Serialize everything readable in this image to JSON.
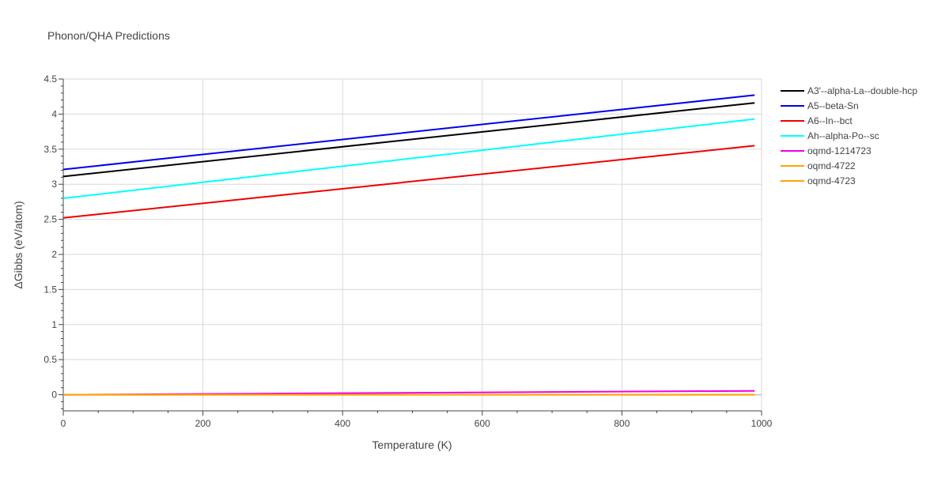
{
  "chart_data": {
    "type": "line",
    "title": "Phonon/QHA Predictions",
    "xlabel": "Temperature (K)",
    "ylabel": "ΔGibbs (eV/atom)",
    "xlim": [
      0,
      1000
    ],
    "ylim": [
      -0.23,
      4.5
    ],
    "x_ticks": [
      0,
      200,
      400,
      600,
      800,
      1000
    ],
    "x_tick_labels": [
      "0",
      "200",
      "400",
      "600",
      "800",
      "1000"
    ],
    "y_ticks": [
      0,
      0.5,
      1,
      1.5,
      2,
      2.5,
      3,
      3.5,
      4,
      4.5
    ],
    "y_tick_labels": [
      "0",
      "0.5",
      "1",
      "1.5",
      "2",
      "2.5",
      "3",
      "3.5",
      "4",
      "4.5"
    ],
    "grid": true,
    "legend_position": "right",
    "x": [
      0,
      990
    ],
    "series": [
      {
        "name": "A3'--alpha-La--double-hcp",
        "color": "#000000",
        "values": [
          3.11,
          4.16
        ]
      },
      {
        "name": "A5--beta-Sn",
        "color": "#0000ee",
        "values": [
          3.21,
          4.27
        ]
      },
      {
        "name": "A6--In--bct",
        "color": "#ee0000",
        "values": [
          2.52,
          3.55
        ]
      },
      {
        "name": "Ah--alpha-Po--sc",
        "color": "#00ffff",
        "values": [
          2.8,
          3.93
        ]
      },
      {
        "name": "oqmd-1214723",
        "color": "#ee00ee",
        "values": [
          0.0,
          0.055
        ]
      },
      {
        "name": "oqmd-4722",
        "color": "#ffa500",
        "values": [
          0.0,
          0.0
        ]
      },
      {
        "name": "oqmd-4723",
        "color": "#ffa500",
        "values": [
          0.0,
          0.0
        ]
      }
    ]
  }
}
